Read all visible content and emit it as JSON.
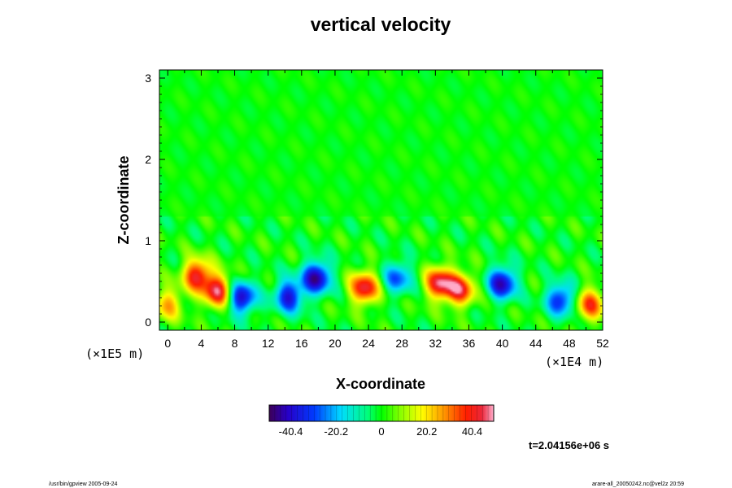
{
  "chart_data": {
    "type": "heatmap",
    "title": "vertical velocity",
    "xlabel": "X-coordinate",
    "ylabel": "Z-coordinate",
    "x_scale_label": "(×1E4 m)",
    "y_scale_label": "(×1E5 m)",
    "x_ticks": [
      "0",
      "4",
      "8",
      "12",
      "16",
      "20",
      "24",
      "28",
      "32",
      "36",
      "40",
      "44",
      "48",
      "52"
    ],
    "y_ticks": [
      "0",
      "1",
      "2",
      "3"
    ],
    "xlim": [
      -1,
      52
    ],
    "ylim": [
      -0.1,
      3.1
    ],
    "colorbar": {
      "range": [
        -50,
        50
      ],
      "tick_values": [
        -40.4,
        -20.2,
        0,
        20.2,
        40.4
      ],
      "tick_labels": [
        "-40.4",
        "-20.2",
        "0",
        "20.2",
        "40.4"
      ]
    },
    "background_value": 0,
    "features": [
      {
        "x": 3.5,
        "z": 0.58,
        "value": 42
      },
      {
        "x": 6.0,
        "z": 0.38,
        "value": 45
      },
      {
        "x": 8.8,
        "z": 0.3,
        "value": -42
      },
      {
        "x": 14.5,
        "z": 0.32,
        "value": -38
      },
      {
        "x": 17.8,
        "z": 0.55,
        "value": -45
      },
      {
        "x": 23.5,
        "z": 0.42,
        "value": 44
      },
      {
        "x": 27.5,
        "z": 0.55,
        "value": -28
      },
      {
        "x": 32.5,
        "z": 0.48,
        "value": 45
      },
      {
        "x": 35.0,
        "z": 0.4,
        "value": 40
      },
      {
        "x": 40.0,
        "z": 0.48,
        "value": -42
      },
      {
        "x": 47.0,
        "z": 0.28,
        "value": -35
      },
      {
        "x": 50.5,
        "z": 0.22,
        "value": 35
      },
      {
        "x": 0.0,
        "z": 0.22,
        "value": 25
      }
    ]
  },
  "annotations": {
    "time": "t=2.04156e+06 s",
    "footer_left": "/usr/bin/gpview 2005-09-24",
    "footer_right": "arare-all_20050242.nc@vel2z 20:59"
  }
}
